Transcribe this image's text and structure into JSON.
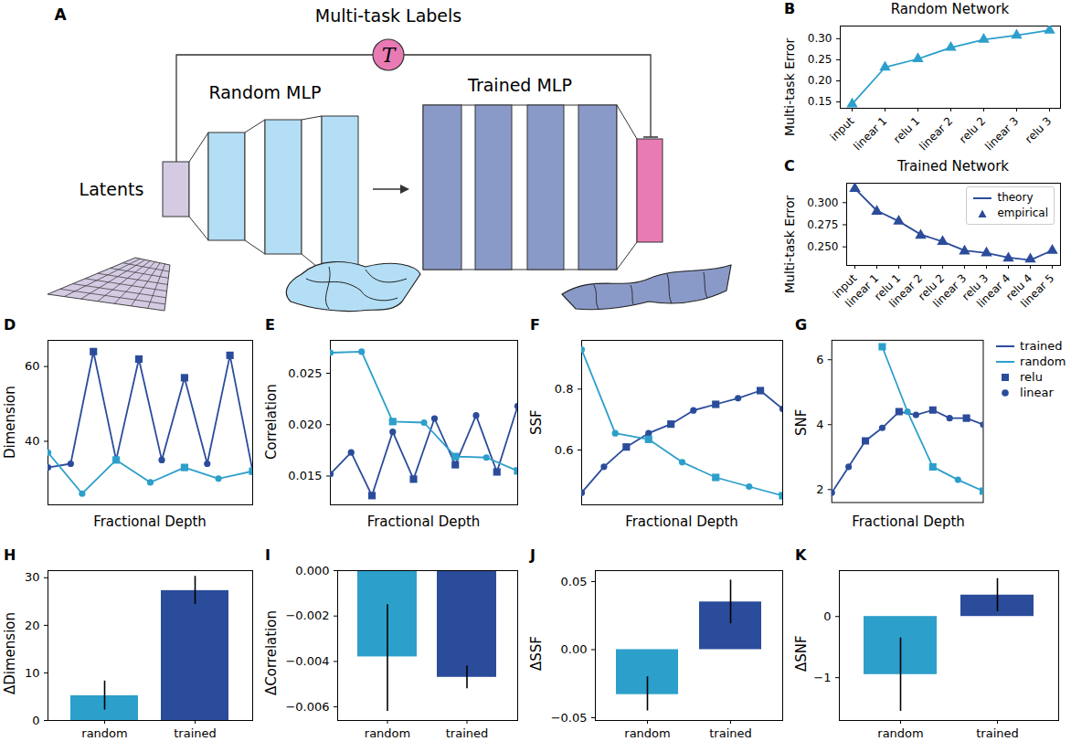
{
  "diagram": {
    "panel": "A",
    "title": "Multi-task Labels",
    "label_symbol": "T",
    "random_label": "Random MLP",
    "trained_label": "Trained MLP",
    "input_label": "Latents"
  },
  "chart_data": [
    {
      "panel": "B",
      "type": "line",
      "title": "Random Network",
      "y_label": "Multi-task Error",
      "categories": [
        "input",
        "linear 1",
        "relu 1",
        "linear 2",
        "relu 2",
        "linear 3",
        "relu 3"
      ],
      "values": [
        0.145,
        0.232,
        0.252,
        0.279,
        0.298,
        0.308,
        0.32
      ],
      "color": "#2c9fcb",
      "marker": "triangle",
      "ylim": [
        0.135,
        0.33
      ],
      "yticks": [
        0.15,
        {
          "value": 0.2,
          "label": "0.20"
        },
        0.25,
        {
          "value": 0.3,
          "label": "0.30"
        }
      ],
      "grid": false
    },
    {
      "panel": "C",
      "type": "line",
      "title": "Trained Network",
      "y_label": "Multi-task Error",
      "categories": [
        "input",
        "linear 1",
        "relu 1",
        "linear 2",
        "relu 2",
        "linear 3",
        "relu 3",
        "linear 4",
        "relu 4",
        "linear 5"
      ],
      "series": [
        {
          "name": "theory",
          "color": "#2b4c9b",
          "type": "line",
          "values": [
            0.316,
            0.291,
            0.279,
            0.264,
            0.256,
            0.246,
            0.243,
            0.238,
            0.235,
            0.246
          ]
        },
        {
          "name": "empirical",
          "color": "#2b4c9b",
          "type": "scatter",
          "marker": "triangle",
          "values": [
            0.316,
            0.29,
            0.279,
            0.263,
            0.256,
            0.245,
            0.243,
            0.237,
            0.236,
            0.246
          ]
        }
      ],
      "ylim": [
        0.229,
        0.322
      ],
      "yticks": [
        {
          "value": 0.25,
          "label": "0.250"
        },
        0.275,
        {
          "value": 0.3,
          "label": "0.300"
        }
      ],
      "grid": false,
      "legend": "upper right"
    },
    {
      "panel": "D",
      "type": "line",
      "x_label": "Fractional Depth",
      "y_label": "Dimension",
      "tick_labels": "y",
      "xlim": [
        0,
        1
      ],
      "ylim": [
        23,
        67
      ],
      "yticks": [
        40,
        60
      ],
      "grid": false,
      "series": [
        {
          "name": "trained",
          "color": "#2b4c9b",
          "x": [
            0,
            0.111,
            0.222,
            0.333,
            0.444,
            0.556,
            0.667,
            0.778,
            0.889,
            1
          ],
          "values": [
            33,
            34,
            64,
            35,
            62,
            35,
            57,
            34,
            63,
            32
          ],
          "markers": [
            "circle",
            "circle",
            "square",
            "circle",
            "square",
            "circle",
            "square",
            "circle",
            "square",
            "circle"
          ]
        },
        {
          "name": "random",
          "color": "#2c9fcb",
          "x": [
            0,
            0.167,
            0.333,
            0.5,
            0.667,
            0.833,
            1
          ],
          "values": [
            37,
            26,
            35,
            29,
            33,
            30,
            32
          ],
          "markers": [
            "circle",
            "circle",
            "square",
            "circle",
            "square",
            "circle",
            "square"
          ]
        }
      ]
    },
    {
      "panel": "E",
      "type": "line",
      "x_label": "Fractional Depth",
      "y_label": "Correlation",
      "tick_labels": "y",
      "xlim": [
        0,
        1
      ],
      "ylim": [
        0.0122,
        0.0282
      ],
      "yticks": [
        0.015,
        {
          "value": 0.02,
          "label": "0.020"
        },
        0.025
      ],
      "grid": false,
      "series": [
        {
          "name": "trained",
          "color": "#2b4c9b",
          "x": [
            0,
            0.111,
            0.222,
            0.333,
            0.444,
            0.556,
            0.667,
            0.778,
            0.889,
            1
          ],
          "values": [
            0.0152,
            0.0173,
            0.0131,
            0.0193,
            0.0147,
            0.0206,
            0.0161,
            0.0209,
            0.0154,
            0.0218
          ],
          "markers": [
            "circle",
            "circle",
            "square",
            "circle",
            "square",
            "circle",
            "square",
            "circle",
            "square",
            "circle"
          ]
        },
        {
          "name": "random",
          "color": "#2c9fcb",
          "x": [
            0,
            0.167,
            0.333,
            0.5,
            0.667,
            0.833,
            1
          ],
          "values": [
            0.027,
            0.0271,
            0.0203,
            0.0202,
            0.0169,
            0.0168,
            0.0155
          ],
          "markers": [
            "circle",
            "circle",
            "square",
            "circle",
            "square",
            "circle",
            "square"
          ]
        }
      ]
    },
    {
      "panel": "F",
      "type": "line",
      "x_label": "Fractional Depth",
      "y_label": "SSF",
      "tick_labels": "y",
      "xlim": [
        0,
        1
      ],
      "ylim": [
        0.42,
        0.96
      ],
      "yticks": [
        0.6,
        0.8
      ],
      "grid": false,
      "series": [
        {
          "name": "trained",
          "color": "#2b4c9b",
          "x": [
            0,
            0.111,
            0.222,
            0.333,
            0.444,
            0.556,
            0.667,
            0.778,
            0.889,
            1
          ],
          "values": [
            0.46,
            0.545,
            0.61,
            0.655,
            0.685,
            0.73,
            0.75,
            0.77,
            0.795,
            0.735
          ],
          "markers": [
            "circle",
            "circle",
            "square",
            "circle",
            "square",
            "circle",
            "square",
            "circle",
            "square",
            "circle"
          ]
        },
        {
          "name": "random",
          "color": "#2c9fcb",
          "x": [
            0,
            0.167,
            0.333,
            0.5,
            0.667,
            0.833,
            1
          ],
          "values": [
            0.93,
            0.655,
            0.635,
            0.56,
            0.51,
            0.48,
            0.45
          ],
          "markers": [
            "circle",
            "circle",
            "square",
            "circle",
            "square",
            "circle",
            "square"
          ]
        }
      ]
    },
    {
      "panel": "G",
      "type": "line",
      "x_label": "Fractional Depth",
      "y_label": "SNF",
      "tick_labels": "y",
      "xlim": [
        0,
        1
      ],
      "ylim": [
        1.6,
        6.6
      ],
      "yticks": [
        2,
        4,
        6
      ],
      "grid": false,
      "legend": "right",
      "marker_legend": [
        {
          "name": "relu",
          "marker": "square",
          "color": "#2b4c9b"
        },
        {
          "name": "linear",
          "marker": "circle",
          "color": "#2b4c9b"
        }
      ],
      "series": [
        {
          "name": "trained",
          "color": "#2b4c9b",
          "x": [
            0,
            0.111,
            0.222,
            0.333,
            0.444,
            0.556,
            0.667,
            0.778,
            0.889,
            1
          ],
          "values": [
            1.9,
            2.7,
            3.5,
            3.9,
            4.4,
            4.3,
            4.45,
            4.2,
            4.2,
            4.0
          ],
          "markers": [
            "circle",
            "circle",
            "square",
            "circle",
            "square",
            "circle",
            "square",
            "circle",
            "square",
            "circle"
          ]
        },
        {
          "name": "random",
          "color": "#2c9fcb",
          "x": [
            0,
            0.167,
            0.333,
            0.5,
            0.667,
            0.833,
            1
          ],
          "values": [
            null,
            null,
            6.4,
            4.4,
            2.7,
            2.3,
            1.95
          ],
          "markers": [
            "circle",
            "circle",
            "square",
            "circle",
            "square",
            "circle",
            "square"
          ]
        }
      ]
    },
    {
      "panel": "H",
      "type": "bar",
      "y_label": "ΔDimension",
      "categories": [
        "random",
        "trained"
      ],
      "values": [
        5.2,
        27.3
      ],
      "error_low": [
        2.2,
        24.4
      ],
      "error_high": [
        8.3,
        30.3
      ],
      "colors": [
        "#2c9fcb",
        "#2b4c9b"
      ],
      "ylim": [
        0,
        31.5
      ],
      "yticks": [
        0,
        10,
        20,
        30
      ],
      "grid": false
    },
    {
      "panel": "I",
      "type": "bar",
      "y_label": "ΔCorrelation",
      "categories": [
        "random",
        "trained"
      ],
      "values": [
        -0.0038,
        -0.0047
      ],
      "error_low": [
        -0.0062,
        -0.0052
      ],
      "error_high": [
        -0.0015,
        -0.0042
      ],
      "colors": [
        "#2c9fcb",
        "#2b4c9b"
      ],
      "ylim": [
        -0.0066,
        0
      ],
      "yticks": [
        {
          "value": 0,
          "label": "0.000"
        },
        {
          "value": -0.002,
          "label": "−0.002"
        },
        {
          "value": -0.004,
          "label": "−0.004"
        },
        {
          "value": -0.006,
          "label": "−0.006"
        }
      ],
      "grid": false
    },
    {
      "panel": "J",
      "type": "bar",
      "y_label": "ΔSSF",
      "categories": [
        "random",
        "trained"
      ],
      "values": [
        -0.033,
        0.035
      ],
      "error_low": [
        -0.045,
        0.019
      ],
      "error_high": [
        -0.02,
        0.051
      ],
      "colors": [
        "#2c9fcb",
        "#2b4c9b"
      ],
      "ylim": [
        -0.052,
        0.058
      ],
      "yticks": [
        {
          "value": -0.05,
          "label": "−0.05"
        },
        {
          "value": 0,
          "label": "0.00"
        },
        {
          "value": 0.05,
          "label": "0.05"
        }
      ],
      "grid": false
    },
    {
      "panel": "K",
      "type": "bar",
      "y_label": "ΔSNF",
      "categories": [
        "random",
        "trained"
      ],
      "values": [
        -0.95,
        0.35
      ],
      "error_low": [
        -1.55,
        0.08
      ],
      "error_high": [
        -0.35,
        0.62
      ],
      "colors": [
        "#2c9fcb",
        "#2b4c9b"
      ],
      "ylim": [
        -1.7,
        0.75
      ],
      "yticks": [
        {
          "value": -1,
          "label": "−1"
        },
        0
      ],
      "grid": false
    }
  ]
}
